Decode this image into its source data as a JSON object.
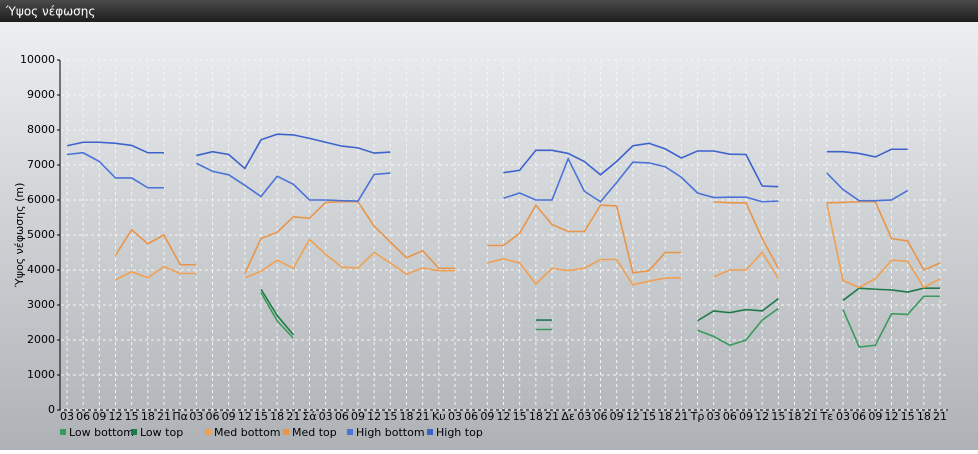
{
  "chart_data": {
    "type": "line",
    "title": "Ύψος νέφωσης",
    "y_label": "Ύψος νέφωσης (m)",
    "categories": [
      "03",
      "06",
      "09",
      "12",
      "15",
      "18",
      "21",
      "Πα",
      "03",
      "06",
      "09",
      "12",
      "15",
      "18",
      "21",
      "Σά",
      "03",
      "06",
      "09",
      "12",
      "15",
      "18",
      "21",
      "Κυ",
      "03",
      "06",
      "09",
      "12",
      "15",
      "18",
      "21",
      "Δε",
      "03",
      "06",
      "09",
      "12",
      "15",
      "18",
      "21",
      "Τρ",
      "03",
      "06",
      "09",
      "12",
      "15",
      "18",
      "21",
      "Τε",
      "03",
      "06",
      "09",
      "12",
      "15",
      "18",
      "21"
    ],
    "ylim": [
      0,
      10000
    ],
    "yticks": [
      0,
      1000,
      2000,
      3000,
      4000,
      5000,
      6000,
      7000,
      8000,
      9000,
      10000
    ],
    "grid": true,
    "series": [
      {
        "name": "Low bottom",
        "color": "#3a9a5c",
        "values": [
          null,
          null,
          null,
          null,
          null,
          null,
          null,
          null,
          null,
          null,
          null,
          null,
          3350,
          2550,
          2050,
          null,
          null,
          null,
          null,
          null,
          null,
          null,
          null,
          null,
          null,
          null,
          null,
          null,
          null,
          2300,
          2300,
          null,
          null,
          null,
          null,
          null,
          null,
          null,
          null,
          2280,
          2100,
          1850,
          2000,
          2570,
          2900,
          null,
          null,
          null,
          2870,
          1800,
          1850,
          2750,
          2730,
          3250,
          3250
        ]
      },
      {
        "name": "Low top",
        "color": "#1f7a48",
        "values": [
          null,
          null,
          null,
          null,
          null,
          null,
          null,
          null,
          null,
          null,
          null,
          null,
          3450,
          2700,
          2150,
          null,
          null,
          null,
          null,
          null,
          null,
          null,
          null,
          null,
          null,
          null,
          null,
          null,
          null,
          2570,
          2570,
          null,
          null,
          null,
          null,
          null,
          null,
          null,
          null,
          2550,
          2830,
          2780,
          2870,
          2830,
          3180,
          null,
          null,
          null,
          3130,
          3480,
          3450,
          3430,
          3370,
          3480,
          3480
        ]
      },
      {
        "name": "Med bottom",
        "color": "#f0a050",
        "values": [
          null,
          null,
          null,
          3720,
          3950,
          3780,
          4100,
          3900,
          3900,
          null,
          null,
          3780,
          3960,
          4280,
          4050,
          4870,
          4450,
          4080,
          4060,
          4500,
          4200,
          3880,
          4060,
          3980,
          3980,
          null,
          4200,
          4320,
          4200,
          3600,
          4050,
          3980,
          4050,
          4300,
          4300,
          3580,
          3680,
          3770,
          3780,
          null,
          3800,
          4000,
          4000,
          4500,
          3760,
          null,
          null,
          5900,
          3700,
          3500,
          3750,
          4280,
          4250,
          3500,
          3750
        ]
      },
      {
        "name": "Med top",
        "color": "#e8954a",
        "values": [
          null,
          null,
          null,
          4420,
          5150,
          4750,
          5000,
          4150,
          4150,
          null,
          null,
          3900,
          4900,
          5080,
          5520,
          5480,
          5930,
          5950,
          5950,
          5250,
          4800,
          4350,
          4550,
          4050,
          4050,
          null,
          4700,
          4700,
          5050,
          5850,
          5300,
          5100,
          5100,
          5850,
          5830,
          3920,
          3980,
          4500,
          4500,
          null,
          5950,
          5920,
          5920,
          4900,
          4050,
          null,
          null,
          5920,
          5930,
          5950,
          5950,
          4900,
          4830,
          4000,
          4200
        ]
      },
      {
        "name": "High bottom",
        "color": "#4a72d8",
        "values": [
          7300,
          7350,
          7100,
          6630,
          6630,
          6350,
          6350,
          null,
          7050,
          6820,
          6720,
          6420,
          6100,
          6680,
          6450,
          6000,
          6000,
          5980,
          5970,
          6730,
          6770,
          null,
          null,
          null,
          null,
          null,
          null,
          6050,
          6200,
          6000,
          6000,
          7180,
          6250,
          5950,
          6500,
          7080,
          7060,
          6950,
          6650,
          6200,
          6070,
          6080,
          6080,
          5950,
          5970,
          null,
          null,
          6770,
          6300,
          5980,
          5980,
          6000,
          6270,
          null,
          null
        ]
      },
      {
        "name": "High top",
        "color": "#3d62cc",
        "values": [
          7550,
          7650,
          7650,
          7620,
          7560,
          7350,
          7350,
          null,
          7270,
          7380,
          7300,
          6900,
          7720,
          7880,
          7860,
          7760,
          7650,
          7540,
          7490,
          7340,
          7370,
          null,
          null,
          null,
          null,
          null,
          null,
          6780,
          6850,
          7420,
          7420,
          7330,
          7100,
          6720,
          7100,
          7550,
          7620,
          7460,
          7200,
          7400,
          7400,
          7310,
          7300,
          6400,
          6380,
          null,
          null,
          7380,
          7380,
          7330,
          7230,
          7450,
          7450,
          null,
          null
        ]
      }
    ]
  }
}
